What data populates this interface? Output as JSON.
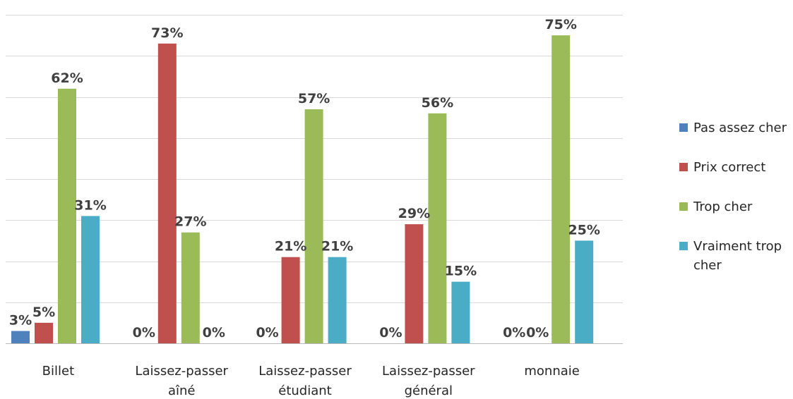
{
  "chart_data": {
    "type": "bar",
    "categories": [
      [
        "Billet"
      ],
      [
        "Laissez-passer",
        "aîné"
      ],
      [
        "Laissez-passer",
        "étudiant"
      ],
      [
        "Laissez-passer",
        "général"
      ],
      [
        "monnaie"
      ]
    ],
    "series": [
      {
        "name": "Pas assez cher",
        "color": "#4F81BD",
        "values": [
          3,
          0,
          0,
          0,
          0
        ]
      },
      {
        "name": "Prix correct",
        "color": "#C0504D",
        "values": [
          5,
          73,
          21,
          29,
          0
        ]
      },
      {
        "name": "Trop cher",
        "color": "#9BBB59",
        "values": [
          62,
          27,
          57,
          56,
          75
        ]
      },
      {
        "name": "Vraiment trop cher",
        "color": "#4BACC6",
        "values": [
          31,
          0,
          21,
          15,
          25
        ]
      }
    ],
    "value_suffix": "%",
    "ylim": [
      0,
      80
    ],
    "grid": true,
    "legend_position": "right"
  }
}
